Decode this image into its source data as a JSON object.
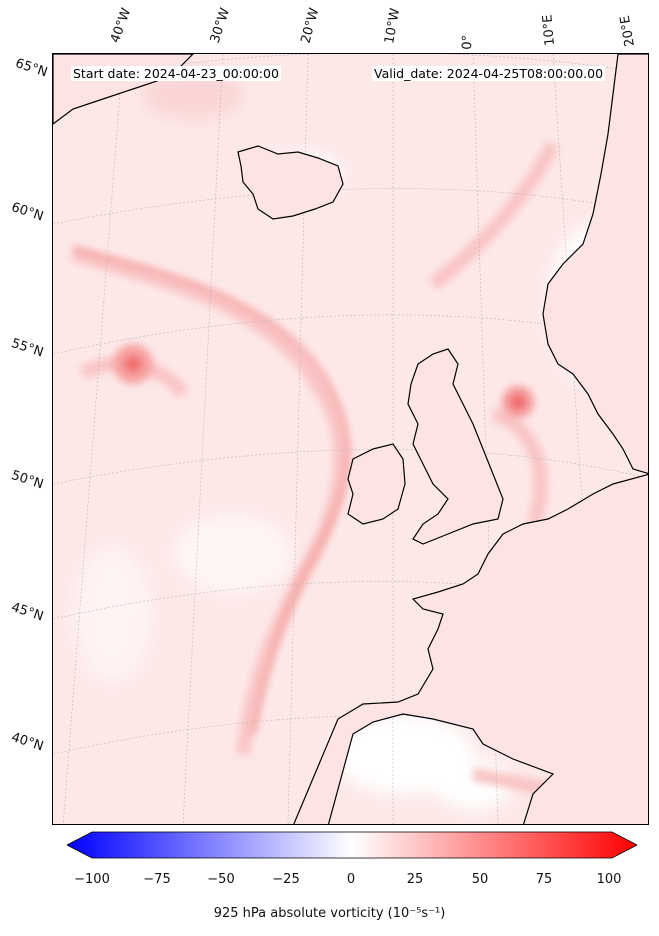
{
  "header": {
    "start_date": "Start date: 2024-04-23_00:00:00",
    "valid_date": "Valid_date: 2024-04-25T08:00:00.00"
  },
  "lon_labels": [
    "40°W",
    "30°W",
    "20°W",
    "10°W",
    "0°",
    "10°E",
    "20°E"
  ],
  "lat_labels": [
    "65°N",
    "60°N",
    "55°N",
    "50°N",
    "45°N",
    "40°N"
  ],
  "colorbar": {
    "ticks": [
      "−100",
      "−75",
      "−50",
      "−25",
      "0",
      "25",
      "50",
      "75",
      "100"
    ],
    "range": [
      -100,
      100
    ],
    "low_color": "#0000ff",
    "high_color": "#ff0000",
    "label": "925 hPa absolute vorticity (10⁻⁵s⁻¹)"
  },
  "colors": {
    "background_field": "#fde9e9",
    "coastline": "#000000"
  }
}
